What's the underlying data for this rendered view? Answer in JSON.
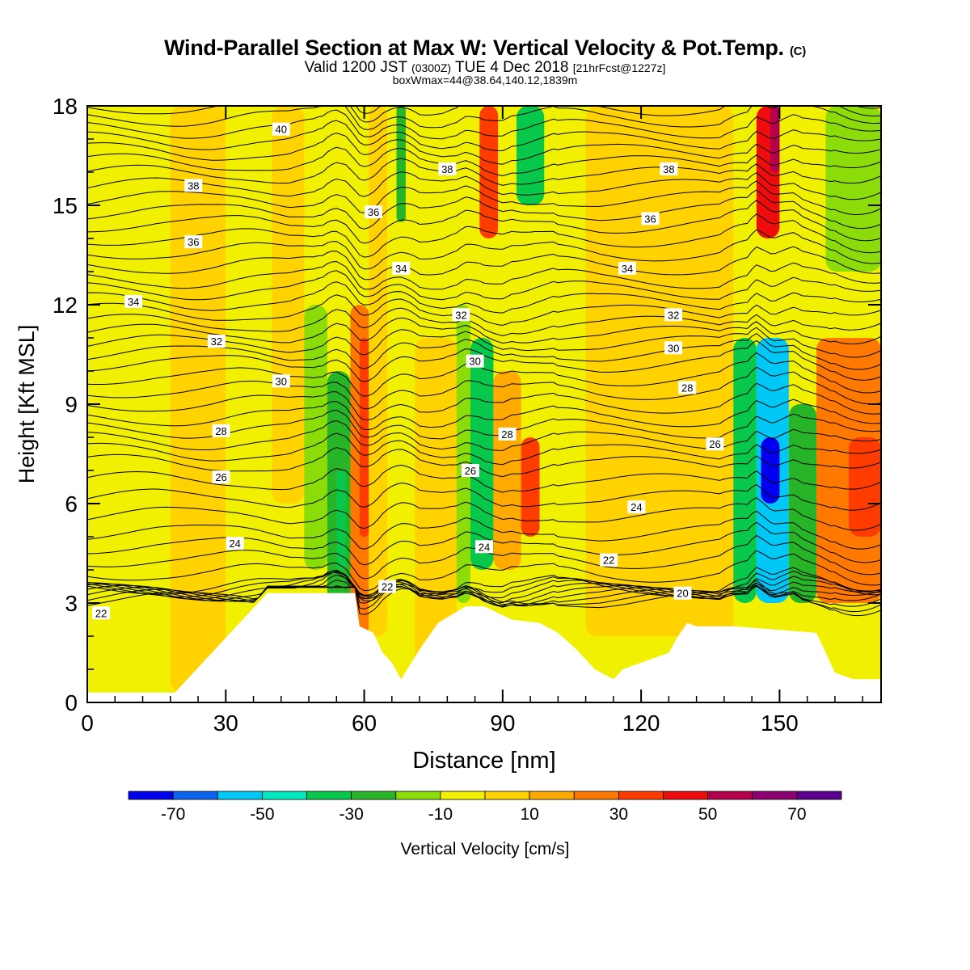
{
  "header": {
    "title_main": "Wind-Parallel Section at Max W: Vertical Velocity & Pot.Temp.",
    "title_copyright": "(C)",
    "valid_prefix": "Valid 1200 JST",
    "valid_utc": "(0300Z)",
    "valid_date": "TUE 4 Dec 2018",
    "valid_fcst": "[21hrFcst@1227z]",
    "box_info": "boxWmax=44@38.64,140.12,1839m"
  },
  "chart_data": {
    "type": "heatmap",
    "xlabel": "Distance [nm]",
    "ylabel": "Height [Kft MSL]",
    "xlim": [
      0,
      172
    ],
    "ylim": [
      0,
      18
    ],
    "xticks": [
      0,
      30,
      60,
      90,
      120,
      150
    ],
    "yticks": [
      0,
      3,
      6,
      9,
      12,
      15,
      18
    ],
    "colorbar": {
      "label": "Vertical Velocity [cm/s]",
      "tick_labels": [
        "-70",
        "-50",
        "-30",
        "-10",
        "10",
        "30",
        "50",
        "70"
      ],
      "bounds": [
        -80,
        -70,
        -60,
        -50,
        -40,
        -30,
        -20,
        -10,
        0,
        10,
        20,
        30,
        40,
        50,
        60,
        70,
        80
      ],
      "colors": [
        "#0000ee",
        "#0a62ee",
        "#00c8f6",
        "#00e8c0",
        "#08c84c",
        "#28b428",
        "#8cdc0a",
        "#f0f000",
        "#ffd200",
        "#ffaa00",
        "#ff7800",
        "#ff3c00",
        "#ee0c0c",
        "#b4004c",
        "#8c0070",
        "#5c0090"
      ]
    },
    "vertical_velocity_cells": [
      {
        "x": [
          0,
          18
        ],
        "z": [
          0.3,
          18
        ],
        "w": -5
      },
      {
        "x": [
          18,
          30
        ],
        "z": [
          0.3,
          18
        ],
        "w": 5
      },
      {
        "x": [
          30,
          40
        ],
        "z": [
          6.5,
          18
        ],
        "w": -5
      },
      {
        "x": [
          40,
          47
        ],
        "z": [
          6,
          18
        ],
        "w": 5
      },
      {
        "x": [
          47,
          52
        ],
        "z": [
          4,
          12
        ],
        "w": -12
      },
      {
        "x": [
          52,
          57
        ],
        "z": [
          3,
          10
        ],
        "w": -22
      },
      {
        "x": [
          54,
          56
        ],
        "z": [
          4,
          7
        ],
        "w": -35
      },
      {
        "x": [
          57,
          61
        ],
        "z": [
          2,
          12
        ],
        "w": 22
      },
      {
        "x": [
          59,
          61
        ],
        "z": [
          5,
          11
        ],
        "w": 32
      },
      {
        "x": [
          61,
          65
        ],
        "z": [
          2,
          18
        ],
        "w": 5
      },
      {
        "x": [
          65,
          71
        ],
        "z": [
          12,
          18
        ],
        "w": -8
      },
      {
        "x": [
          67,
          69
        ],
        "z": [
          14.5,
          18
        ],
        "w": -30
      },
      {
        "x": [
          71,
          80
        ],
        "z": [
          1,
          11
        ],
        "w": 8
      },
      {
        "x": [
          80,
          83
        ],
        "z": [
          3,
          12
        ],
        "w": -15
      },
      {
        "x": [
          83,
          88
        ],
        "z": [
          4,
          11
        ],
        "w": -32
      },
      {
        "x": [
          88,
          94
        ],
        "z": [
          4,
          10
        ],
        "w": 15
      },
      {
        "x": [
          94,
          98
        ],
        "z": [
          5,
          8
        ],
        "w": 32
      },
      {
        "x": [
          85,
          89
        ],
        "z": [
          14,
          18
        ],
        "w": 30
      },
      {
        "x": [
          93,
          99
        ],
        "z": [
          15,
          18
        ],
        "w": -32
      },
      {
        "x": [
          100,
          108
        ],
        "z": [
          3,
          10
        ],
        "w": -8
      },
      {
        "x": [
          108,
          140
        ],
        "z": [
          2,
          18
        ],
        "w": 5
      },
      {
        "x": [
          140,
          145
        ],
        "z": [
          3,
          11
        ],
        "w": -35
      },
      {
        "x": [
          145,
          152
        ],
        "z": [
          3,
          11
        ],
        "w": -55
      },
      {
        "x": [
          146,
          150
        ],
        "z": [
          6,
          8
        ],
        "w": -75
      },
      {
        "x": [
          152,
          158
        ],
        "z": [
          3,
          9
        ],
        "w": -30
      },
      {
        "x": [
          145,
          150
        ],
        "z": [
          14,
          18
        ],
        "w": 45
      },
      {
        "x": [
          148,
          150
        ],
        "z": [
          16,
          18
        ],
        "w": 55
      },
      {
        "x": [
          158,
          172
        ],
        "z": [
          3,
          11
        ],
        "w": 25
      },
      {
        "x": [
          165,
          172
        ],
        "z": [
          5,
          8
        ],
        "w": 35
      },
      {
        "x": [
          160,
          172
        ],
        "z": [
          13,
          18
        ],
        "w": -15
      }
    ],
    "terrain_profile": {
      "x": [
        0,
        19,
        21,
        23,
        25,
        27,
        29,
        31,
        33,
        35,
        37,
        39,
        41,
        49,
        58,
        59,
        62,
        64,
        66,
        68,
        72,
        76,
        82,
        84,
        86,
        92,
        98,
        102,
        106,
        110,
        114,
        116,
        126,
        128,
        130,
        132,
        134,
        136,
        138,
        140,
        158,
        160,
        162,
        166,
        172
      ],
      "z": [
        0.3,
        0.3,
        0.6,
        0.9,
        1.2,
        1.5,
        1.8,
        2.1,
        2.4,
        2.7,
        3.0,
        3.3,
        3.3,
        3.3,
        3.3,
        2.3,
        2.1,
        1.5,
        1.2,
        0.7,
        1.6,
        2.4,
        2.9,
        2.9,
        2.9,
        2.5,
        2.4,
        2.1,
        1.6,
        1.0,
        0.7,
        1.0,
        1.5,
        2.0,
        2.4,
        2.3,
        2.3,
        2.3,
        2.3,
        2.3,
        2.1,
        1.5,
        0.9,
        0.7,
        0.7
      ]
    },
    "theta_contour_labels": [
      {
        "label": "40",
        "x": 42,
        "z": 17.3
      },
      {
        "label": "38",
        "x": 23,
        "z": 15.6
      },
      {
        "label": "38",
        "x": 78,
        "z": 16.1
      },
      {
        "label": "38",
        "x": 126,
        "z": 16.1
      },
      {
        "label": "36",
        "x": 23,
        "z": 13.9
      },
      {
        "label": "36",
        "x": 62,
        "z": 14.8
      },
      {
        "label": "36",
        "x": 122,
        "z": 14.6
      },
      {
        "label": "34",
        "x": 10,
        "z": 12.1
      },
      {
        "label": "34",
        "x": 68,
        "z": 13.1
      },
      {
        "label": "34",
        "x": 117,
        "z": 13.1
      },
      {
        "label": "32",
        "x": 28,
        "z": 10.9
      },
      {
        "label": "32",
        "x": 81,
        "z": 11.7
      },
      {
        "label": "32",
        "x": 127,
        "z": 11.7
      },
      {
        "label": "30",
        "x": 42,
        "z": 9.7
      },
      {
        "label": "30",
        "x": 84,
        "z": 10.3
      },
      {
        "label": "30",
        "x": 127,
        "z": 10.7
      },
      {
        "label": "28",
        "x": 29,
        "z": 8.2
      },
      {
        "label": "28",
        "x": 91,
        "z": 8.1
      },
      {
        "label": "28",
        "x": 130,
        "z": 9.5
      },
      {
        "label": "26",
        "x": 29,
        "z": 6.8
      },
      {
        "label": "26",
        "x": 83,
        "z": 7.0
      },
      {
        "label": "26",
        "x": 136,
        "z": 7.8
      },
      {
        "label": "24",
        "x": 32,
        "z": 4.8
      },
      {
        "label": "24",
        "x": 86,
        "z": 4.7
      },
      {
        "label": "24",
        "x": 119,
        "z": 5.9
      },
      {
        "label": "22",
        "x": 3,
        "z": 2.7
      },
      {
        "label": "22",
        "x": 65,
        "z": 3.5
      },
      {
        "label": "22",
        "x": 113,
        "z": 4.3
      },
      {
        "label": "20",
        "x": 129,
        "z": 3.3
      }
    ]
  }
}
